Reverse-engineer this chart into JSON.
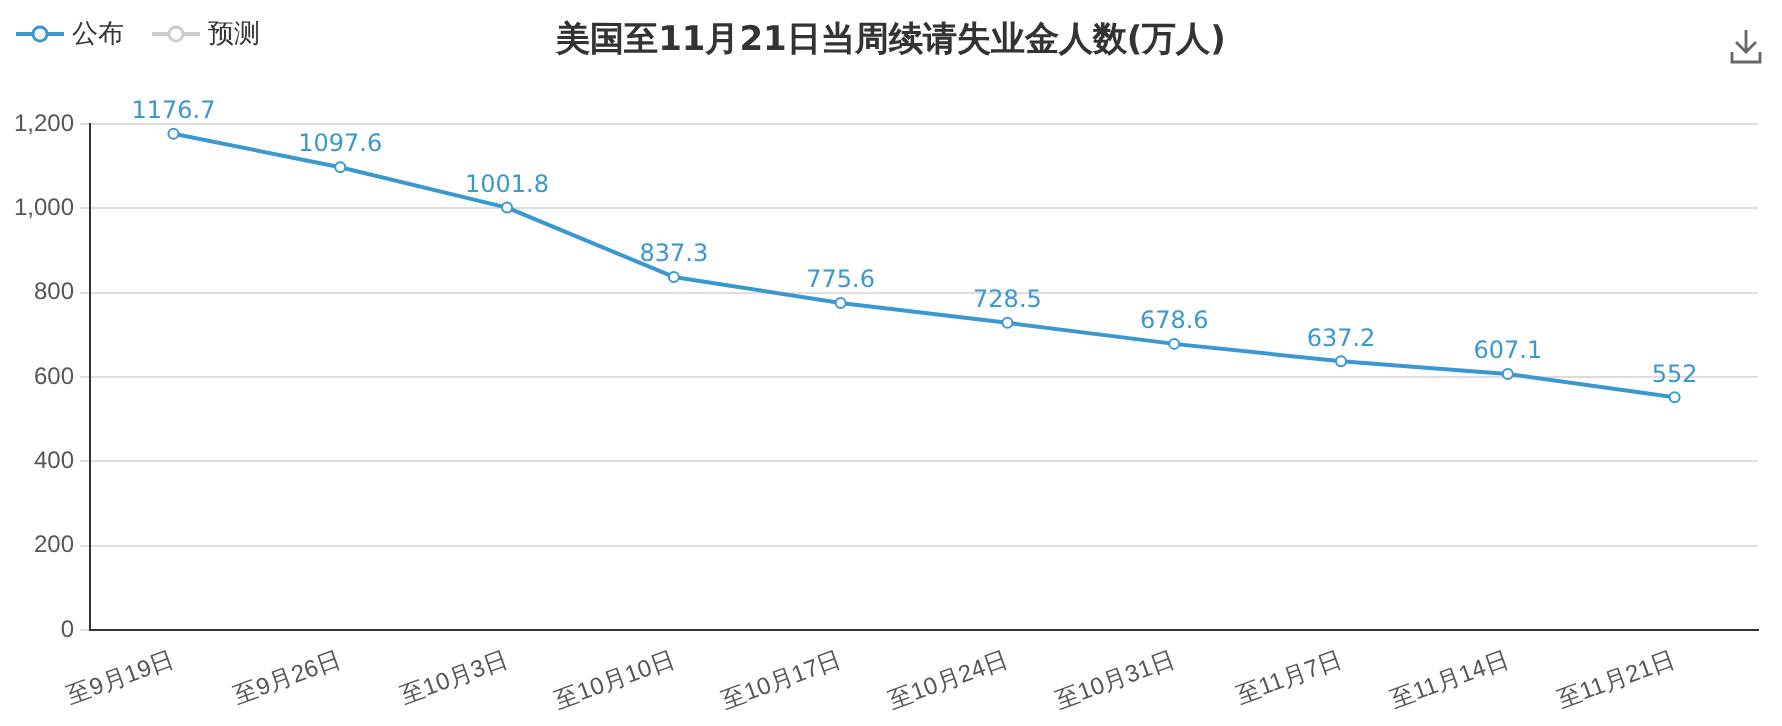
{
  "chart_data": {
    "type": "line",
    "title": "美国至11月21日当周续请失业金人数(万人)",
    "categories": [
      "至9月19日",
      "至9月26日",
      "至10月3日",
      "至10月10日",
      "至10月17日",
      "至10月24日",
      "至10月31日",
      "至11月7日",
      "至11月14日",
      "至11月21日"
    ],
    "series": [
      {
        "name": "公布",
        "color": "#3a98d0",
        "values": [
          1176.7,
          1097.6,
          1001.8,
          837.3,
          775.6,
          728.5,
          678.6,
          637.2,
          607.1,
          552
        ]
      },
      {
        "name": "预测",
        "color": "#cccccc",
        "values": [
          null,
          null,
          null,
          null,
          null,
          null,
          null,
          null,
          null,
          null
        ]
      }
    ],
    "ylim": [
      0,
      1200
    ],
    "yticks": [
      0,
      200,
      400,
      600,
      800,
      {
        "value": 1000,
        "label": "1,000"
      },
      {
        "value": 1200,
        "label": "1,200"
      }
    ],
    "grid": "y",
    "legend": "top left",
    "marker": "circle",
    "line_style": "solid",
    "data_labels": true
  }
}
